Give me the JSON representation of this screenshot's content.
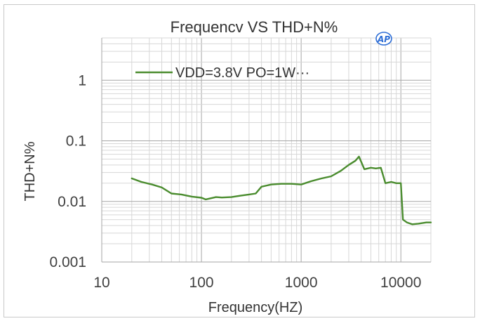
{
  "chart_data": {
    "type": "line",
    "title": "Frequencv VS THD+N%",
    "xlabel": "Frequency(HZ)",
    "ylabel": "THD+N%",
    "x_scale": "log",
    "y_scale": "log",
    "xlim": [
      10,
      20000
    ],
    "ylim": [
      0.001,
      5
    ],
    "x_ticks": [
      "10",
      "100",
      "1000",
      "10000"
    ],
    "y_ticks": [
      "1",
      "0.1",
      "0.01",
      "0.001"
    ],
    "grid": true,
    "legend_position": "top-left",
    "series": [
      {
        "name": "VDD=3.8V PO=1W···",
        "color": "#4a8c2e",
        "x": [
          20,
          25,
          32,
          40,
          50,
          63,
          80,
          100,
          110,
          125,
          140,
          160,
          200,
          250,
          300,
          350,
          400,
          500,
          630,
          800,
          1000,
          1250,
          1600,
          2000,
          2500,
          3000,
          3500,
          3800,
          4300,
          5000,
          5600,
          6300,
          7000,
          8000,
          9000,
          10000,
          10500,
          11500,
          13000,
          15000,
          18000,
          20000
        ],
        "values": [
          0.024,
          0.021,
          0.019,
          0.017,
          0.0135,
          0.013,
          0.012,
          0.0115,
          0.0108,
          0.0113,
          0.0118,
          0.0116,
          0.0118,
          0.0125,
          0.013,
          0.0135,
          0.0175,
          0.019,
          0.0195,
          0.0195,
          0.019,
          0.0215,
          0.024,
          0.026,
          0.032,
          0.04,
          0.047,
          0.055,
          0.034,
          0.036,
          0.035,
          0.036,
          0.02,
          0.021,
          0.02,
          0.02,
          0.005,
          0.0045,
          0.0042,
          0.0043,
          0.0045,
          0.0045
        ]
      }
    ]
  }
}
